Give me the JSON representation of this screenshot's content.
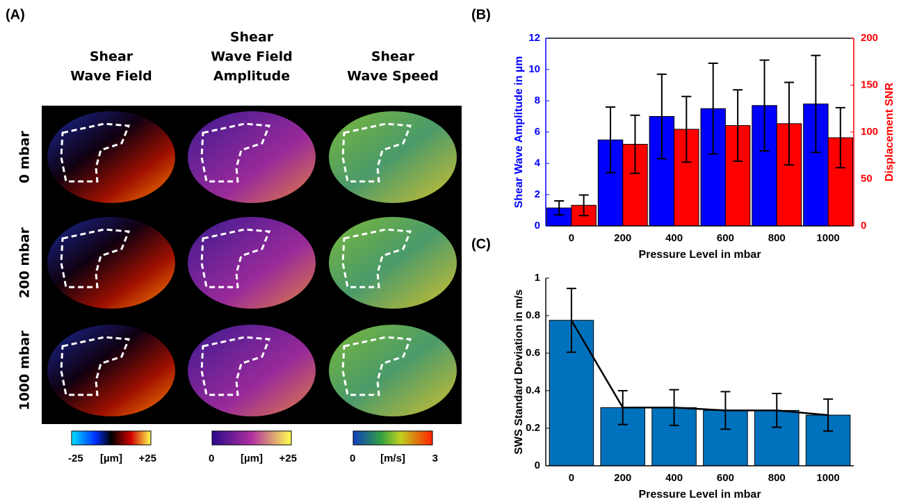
{
  "panel_labels": [
    "(A)",
    "(B)",
    "(C)"
  ],
  "panel_a": {
    "columns": [
      [
        "Shear",
        "Wave Field"
      ],
      [
        "Shear",
        "Wave Field",
        "Amplitude"
      ],
      [
        "Shear",
        "Wave Speed"
      ]
    ],
    "rows": [
      "0 mbar",
      "200 mbar",
      "1000 mbar"
    ],
    "colorbars": [
      [
        "-25",
        "[µm]",
        "+25"
      ],
      [
        "0",
        "[µm]",
        "+25"
      ],
      [
        "0",
        "[m/s]",
        "3"
      ]
    ]
  },
  "chart_data": [
    {
      "type": "bar",
      "categories": [
        "0",
        "200",
        "400",
        "600",
        "800",
        "1000"
      ],
      "xlabel": "Pressure Level in mbar",
      "ylabel": "Shear Wave Amplitude in µm",
      "y2label": "Displacement SNR",
      "ylim": [
        0,
        12
      ],
      "yticks": [
        0,
        2,
        4,
        6,
        8,
        10,
        12
      ],
      "y2lim": [
        0,
        200
      ],
      "y2ticks": [
        0,
        50,
        100,
        150,
        200
      ],
      "box": true,
      "color_axes": true,
      "series": [
        {
          "color": "#0000ff",
          "values": [
            1.15,
            5.5,
            7.0,
            7.5,
            7.7,
            7.8
          ],
          "errors": [
            0.45,
            2.1,
            2.7,
            2.9,
            2.9,
            3.1
          ]
        },
        {
          "color": "#ff0000",
          "axis": "y2",
          "values": [
            22,
            87,
            103,
            107,
            109,
            94
          ],
          "errors": [
            11,
            31,
            35,
            38,
            44,
            32
          ]
        }
      ]
    },
    {
      "type": "bar",
      "categories": [
        "0",
        "200",
        "400",
        "600",
        "800",
        "1000"
      ],
      "xlabel": "Pressure Level in mbar",
      "ylabel": "SWS Standard Deviation in m/s",
      "ylim": [
        0,
        1
      ],
      "yticks": [
        0,
        0.2,
        0.4,
        0.6,
        0.8,
        1
      ],
      "box": false,
      "color_axes": false,
      "line_color": "#000000",
      "series": [
        {
          "color": "#0072bd",
          "values": [
            0.775,
            0.31,
            0.31,
            0.295,
            0.295,
            0.27
          ],
          "errors": [
            0.17,
            0.09,
            0.095,
            0.1,
            0.09,
            0.085
          ]
        }
      ]
    }
  ]
}
